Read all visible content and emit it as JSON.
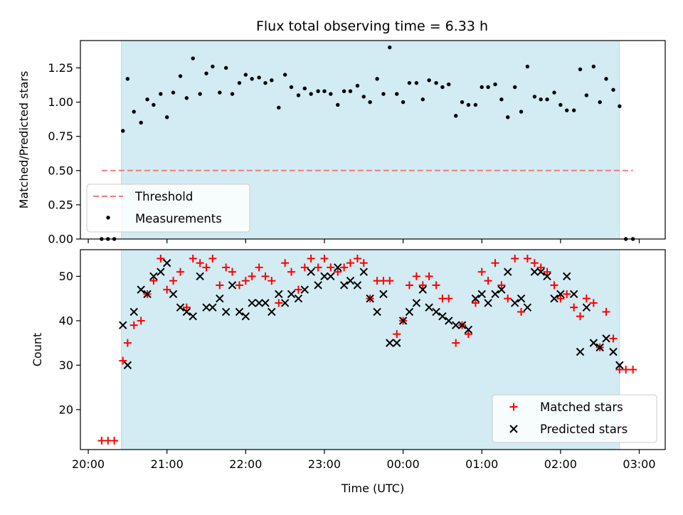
{
  "chart_data": [
    {
      "type": "scatter",
      "panel": "top",
      "title": "Flux total observing time = 6.33 h",
      "ylabel": "Matched/Predicted stars",
      "xlabel": "",
      "xlim": [
        -0.1,
        7.33
      ],
      "ylim": [
        0,
        1.45
      ],
      "yticks": [
        0.0,
        0.25,
        0.5,
        0.75,
        1.0,
        1.25
      ],
      "ytick_labels": [
        "0.00",
        "0.25",
        "0.50",
        "0.75",
        "1.00",
        "1.25"
      ],
      "observing_window": [
        0.42,
        6.75
      ],
      "threshold": {
        "name": "Threshold",
        "value": 0.5,
        "x_range": [
          0.17,
          6.92
        ],
        "color": "#f07c7c"
      },
      "legend": {
        "placement": "lower-left"
      },
      "series": [
        {
          "name": "Measurements",
          "color": "#000000",
          "x": [
            0.17,
            0.25,
            0.33,
            0.44,
            0.5,
            0.58,
            0.67,
            0.75,
            0.83,
            0.92,
            1.0,
            1.08,
            1.17,
            1.25,
            1.33,
            1.42,
            1.5,
            1.58,
            1.67,
            1.75,
            1.83,
            1.92,
            2.0,
            2.08,
            2.17,
            2.25,
            2.33,
            2.42,
            2.5,
            2.58,
            2.67,
            2.75,
            2.83,
            2.92,
            3.0,
            3.08,
            3.17,
            3.25,
            3.33,
            3.42,
            3.5,
            3.58,
            3.67,
            3.75,
            3.83,
            3.92,
            4.0,
            4.08,
            4.17,
            4.25,
            4.33,
            4.42,
            4.5,
            4.58,
            4.67,
            4.75,
            4.83,
            4.92,
            5.0,
            5.08,
            5.17,
            5.25,
            5.33,
            5.42,
            5.5,
            5.58,
            5.67,
            5.75,
            5.83,
            5.92,
            6.0,
            6.08,
            6.17,
            6.25,
            6.33,
            6.42,
            6.5,
            6.58,
            6.67,
            6.75,
            6.83,
            6.92
          ],
          "y": [
            0,
            0,
            0,
            0.79,
            1.17,
            0.93,
            0.85,
            1.02,
            0.98,
            1.06,
            0.89,
            1.07,
            1.19,
            1.03,
            1.32,
            1.06,
            1.21,
            1.26,
            1.07,
            1.25,
            1.06,
            1.14,
            1.2,
            1.17,
            1.18,
            1.14,
            1.16,
            0.96,
            1.2,
            1.11,
            1.05,
            1.1,
            1.06,
            1.08,
            1.08,
            1.06,
            0.98,
            1.08,
            1.08,
            1.12,
            1.04,
            1.0,
            1.17,
            1.06,
            1.4,
            1.06,
            1.0,
            1.14,
            1.14,
            1.02,
            1.16,
            1.14,
            1.11,
            1.13,
            0.9,
            1.0,
            0.98,
            0.98,
            1.11,
            1.11,
            1.13,
            1.02,
            0.89,
            1.11,
            0.93,
            1.26,
            1.04,
            1.02,
            1.02,
            1.07,
            0.98,
            0.94,
            0.94,
            1.24,
            1.05,
            1.26,
            1.0,
            1.17,
            1.09,
            0.97,
            0,
            0
          ]
        }
      ]
    },
    {
      "type": "scatter",
      "panel": "bottom",
      "ylabel": "Count",
      "xlabel": "Time (UTC)",
      "xlim": [
        -0.1,
        7.33
      ],
      "ylim": [
        11,
        56
      ],
      "yticks": [
        20,
        30,
        40,
        50
      ],
      "ytick_labels": [
        "20",
        "30",
        "40",
        "50"
      ],
      "xticks": [
        0,
        1,
        2,
        3,
        4,
        5,
        6,
        7
      ],
      "xtick_labels": [
        "20:00",
        "21:00",
        "22:00",
        "23:00",
        "00:00",
        "01:00",
        "02:00",
        "03:00"
      ],
      "observing_window": [
        0.42,
        6.75
      ],
      "legend": {
        "placement": "lower-right"
      },
      "series": [
        {
          "name": "Matched stars",
          "color": "#ff0000",
          "marker": "plus",
          "x": [
            0.17,
            0.25,
            0.33,
            0.44,
            0.5,
            0.58,
            0.67,
            0.75,
            0.83,
            0.92,
            1.0,
            1.08,
            1.17,
            1.25,
            1.33,
            1.42,
            1.5,
            1.58,
            1.67,
            1.75,
            1.83,
            1.92,
            2.0,
            2.08,
            2.17,
            2.25,
            2.33,
            2.42,
            2.5,
            2.58,
            2.67,
            2.75,
            2.83,
            2.92,
            3.0,
            3.08,
            3.17,
            3.25,
            3.33,
            3.42,
            3.5,
            3.58,
            3.67,
            3.75,
            3.83,
            3.92,
            4.0,
            4.08,
            4.17,
            4.25,
            4.33,
            4.42,
            4.5,
            4.58,
            4.67,
            4.75,
            4.83,
            4.92,
            5.0,
            5.08,
            5.17,
            5.25,
            5.33,
            5.42,
            5.5,
            5.58,
            5.67,
            5.75,
            5.83,
            5.92,
            6.0,
            6.08,
            6.17,
            6.25,
            6.33,
            6.42,
            6.5,
            6.58,
            6.67,
            6.75,
            6.83,
            6.92
          ],
          "y": [
            13,
            13,
            13,
            31,
            35,
            39,
            40,
            46,
            49,
            54,
            47,
            49,
            51,
            43,
            54,
            53,
            52,
            54,
            48,
            52,
            51,
            48,
            49,
            50,
            52,
            50,
            49,
            44,
            53,
            51,
            47,
            52,
            54,
            52,
            54,
            52,
            51,
            52,
            53,
            54,
            53,
            45,
            49,
            49,
            49,
            37,
            40,
            48,
            50,
            48,
            50,
            48,
            45,
            45,
            35,
            39,
            37,
            44,
            51,
            49,
            53,
            48,
            45,
            54,
            42,
            54,
            53,
            52,
            51,
            48,
            45,
            46,
            43,
            41,
            45,
            44,
            34,
            42,
            36,
            29,
            29,
            29
          ]
        },
        {
          "name": "Predicted stars",
          "color": "#000000",
          "marker": "x",
          "x": [
            0.44,
            0.5,
            0.58,
            0.67,
            0.75,
            0.83,
            0.92,
            1.0,
            1.08,
            1.17,
            1.25,
            1.33,
            1.42,
            1.5,
            1.58,
            1.67,
            1.75,
            1.83,
            1.92,
            2.0,
            2.08,
            2.17,
            2.25,
            2.33,
            2.42,
            2.5,
            2.58,
            2.67,
            2.75,
            2.83,
            2.92,
            3.0,
            3.08,
            3.17,
            3.25,
            3.33,
            3.42,
            3.5,
            3.58,
            3.67,
            3.75,
            3.83,
            3.92,
            4.0,
            4.08,
            4.17,
            4.25,
            4.33,
            4.42,
            4.5,
            4.58,
            4.67,
            4.75,
            4.83,
            4.92,
            5.0,
            5.08,
            5.17,
            5.25,
            5.33,
            5.42,
            5.5,
            5.58,
            5.67,
            5.75,
            5.83,
            5.92,
            6.0,
            6.08,
            6.17,
            6.25,
            6.33,
            6.42,
            6.5,
            6.58,
            6.67,
            6.75
          ],
          "y": [
            39,
            30,
            42,
            47,
            46,
            50,
            51,
            53,
            46,
            43,
            42,
            41,
            50,
            43,
            43,
            45,
            42,
            48,
            42,
            41,
            44,
            44,
            44,
            42,
            46,
            44,
            46,
            45,
            47,
            51,
            48,
            50,
            50,
            52,
            48,
            49,
            48,
            51,
            45,
            42,
            46,
            35,
            35,
            40,
            42,
            44,
            47,
            43,
            42,
            41,
            40,
            39,
            39,
            38,
            45,
            46,
            44,
            46,
            47,
            51,
            44,
            45,
            43,
            51,
            51,
            50,
            45,
            46,
            50,
            46,
            33,
            43,
            35,
            34,
            36,
            33,
            30
          ]
        }
      ]
    }
  ]
}
